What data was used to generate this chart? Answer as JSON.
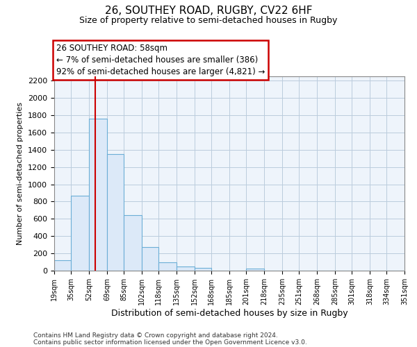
{
  "title": "26, SOUTHEY ROAD, RUGBY, CV22 6HF",
  "subtitle": "Size of property relative to semi-detached houses in Rugby",
  "xlabel": "Distribution of semi-detached houses by size in Rugby",
  "ylabel": "Number of semi-detached properties",
  "footer_line1": "Contains HM Land Registry data © Crown copyright and database right 2024.",
  "footer_line2": "Contains public sector information licensed under the Open Government Licence v3.0.",
  "annotation_title": "26 SOUTHEY ROAD: 58sqm",
  "annotation_line1": "← 7% of semi-detached houses are smaller (386)",
  "annotation_line2": "92% of semi-detached houses are larger (4,821) →",
  "property_size": 58,
  "bar_edges": [
    19,
    35,
    52,
    69,
    85,
    102,
    118,
    135,
    152,
    168,
    185,
    201,
    218,
    235,
    251,
    268,
    285,
    301,
    318,
    334,
    351
  ],
  "bar_heights": [
    120,
    870,
    1760,
    1350,
    645,
    270,
    100,
    50,
    30,
    0,
    0,
    25,
    0,
    0,
    0,
    0,
    0,
    0,
    0,
    0
  ],
  "bar_color": "#dce9f8",
  "bar_edgecolor": "#6baed6",
  "vline_color": "#cc0000",
  "vline_x": 58,
  "ylim": [
    0,
    2250
  ],
  "yticks": [
    0,
    200,
    400,
    600,
    800,
    1000,
    1200,
    1400,
    1600,
    1800,
    2000,
    2200
  ],
  "bg_color": "#ffffff",
  "plot_bg_color": "#eef4fb",
  "grid_color": "#bbccdd",
  "annotation_box_edgecolor": "#cc0000",
  "annotation_box_facecolor": "#ffffff"
}
